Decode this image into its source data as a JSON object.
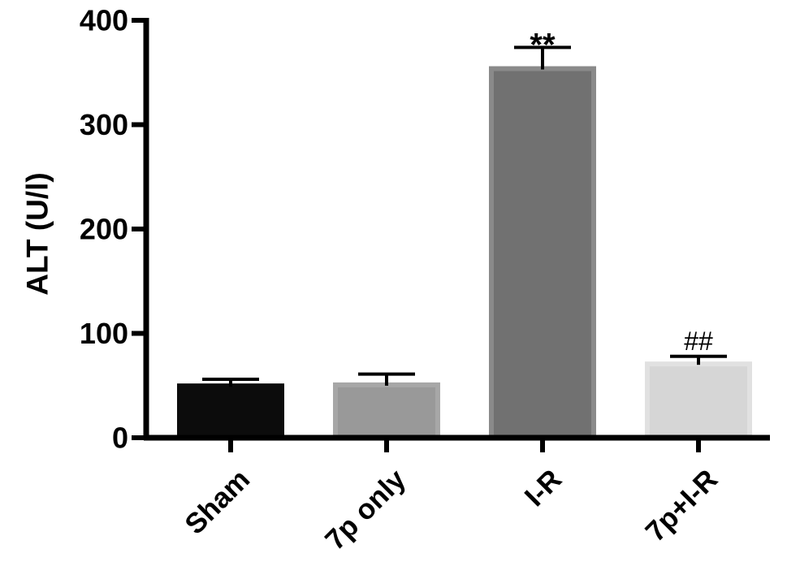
{
  "chart_data": {
    "type": "bar",
    "title": "",
    "xlabel": "",
    "ylabel": "ALT (U/l)",
    "ylim": [
      0,
      400
    ],
    "yticks": [
      0,
      100,
      200,
      300,
      400
    ],
    "categories": [
      "Sham",
      "7p only",
      "I-R",
      "7p+I-R"
    ],
    "values": [
      52,
      53,
      356,
      73
    ],
    "errors": [
      4,
      8,
      18,
      5
    ],
    "annotations": [
      "",
      "",
      "**",
      "##"
    ],
    "colors": [
      "#0c0c0c",
      "#999999",
      "#717171",
      "#d6d6d6"
    ],
    "bar_edge_colors": [
      "#0c0c0c",
      "#a7a7a7",
      "#8a8a8a",
      "#e1e1e1"
    ],
    "grid": false,
    "legend": "none"
  }
}
